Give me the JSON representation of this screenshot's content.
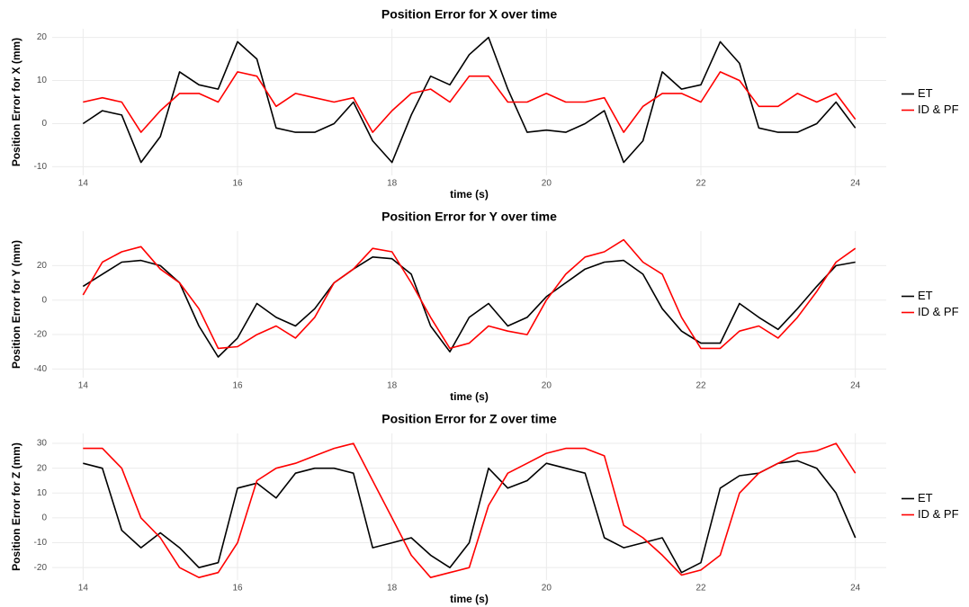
{
  "chart_data": [
    {
      "type": "line",
      "title": "Position Error for X over time",
      "xlabel": "time (s)",
      "ylabel": "Position Error for X (mm)",
      "x": [
        14,
        14.25,
        14.5,
        14.75,
        15,
        15.25,
        15.5,
        15.75,
        16,
        16.25,
        16.5,
        16.75,
        17,
        17.25,
        17.5,
        17.75,
        18,
        18.25,
        18.5,
        18.75,
        19,
        19.25,
        19.5,
        19.75,
        20,
        20.25,
        20.5,
        20.75,
        21,
        21.25,
        21.5,
        21.75,
        22,
        22.25,
        22.5,
        22.75,
        23,
        23.25,
        23.5,
        23.75,
        24
      ],
      "series": [
        {
          "name": "ET",
          "color": "#000000",
          "values": [
            0,
            3,
            2,
            -9,
            -3,
            12,
            9,
            8,
            19,
            15,
            -1,
            -2,
            -2,
            0,
            5,
            -4,
            -9,
            2,
            11,
            9,
            16,
            20,
            8,
            -2,
            -1.5,
            -2,
            0,
            3,
            -9,
            -4,
            12,
            8,
            9,
            19,
            14,
            -1,
            -2,
            -2,
            0,
            5,
            -1
          ]
        },
        {
          "name": "ID & PF",
          "color": "#ff0000",
          "values": [
            5,
            6,
            5,
            -2,
            3,
            7,
            7,
            5,
            12,
            11,
            4,
            7,
            6,
            5,
            6,
            -2,
            3,
            7,
            8,
            5,
            11,
            11,
            5,
            5,
            7,
            5,
            5,
            6,
            -2,
            4,
            7,
            7,
            5,
            12,
            10,
            4,
            4,
            7,
            5,
            7,
            1
          ]
        }
      ],
      "xlim": [
        13.6,
        24.4
      ],
      "ylim": [
        -12,
        22
      ],
      "xticks": [
        14,
        16,
        18,
        20,
        22,
        24
      ],
      "yticks": [
        -10,
        0,
        10,
        20
      ],
      "grid": true,
      "legend": "right"
    },
    {
      "type": "line",
      "title": "Position Error for Y over time",
      "xlabel": "time (s)",
      "ylabel": "Position Error for Y (mm)",
      "x": [
        14,
        14.25,
        14.5,
        14.75,
        15,
        15.25,
        15.5,
        15.75,
        16,
        16.25,
        16.5,
        16.75,
        17,
        17.25,
        17.5,
        17.75,
        18,
        18.25,
        18.5,
        18.75,
        19,
        19.25,
        19.5,
        19.75,
        20,
        20.25,
        20.5,
        20.75,
        21,
        21.25,
        21.5,
        21.75,
        22,
        22.25,
        22.5,
        22.75,
        23,
        23.25,
        23.5,
        23.75,
        24
      ],
      "series": [
        {
          "name": "ET",
          "color": "#000000",
          "values": [
            8,
            15,
            22,
            23,
            20,
            10,
            -15,
            -33,
            -22,
            -2,
            -10,
            -15,
            -5,
            10,
            18,
            25,
            24,
            15,
            -15,
            -30,
            -10,
            -2,
            -15,
            -10,
            2,
            10,
            18,
            22,
            23,
            15,
            -5,
            -18,
            -25,
            -25,
            -2,
            -10,
            -17,
            -5,
            8,
            20,
            22
          ]
        },
        {
          "name": "ID & PF",
          "color": "#ff0000",
          "values": [
            3,
            22,
            28,
            31,
            18,
            10,
            -5,
            -28,
            -27,
            -20,
            -15,
            -22,
            -10,
            10,
            18,
            30,
            28,
            10,
            -10,
            -28,
            -25,
            -15,
            -18,
            -20,
            0,
            15,
            25,
            28,
            35,
            22,
            15,
            -10,
            -28,
            -28,
            -18,
            -15,
            -22,
            -10,
            5,
            22,
            30
          ]
        }
      ],
      "xlim": [
        13.6,
        24.4
      ],
      "ylim": [
        -45,
        40
      ],
      "xticks": [
        14,
        16,
        18,
        20,
        22,
        24
      ],
      "yticks": [
        -40,
        -20,
        0,
        20
      ],
      "grid": true,
      "legend": "right"
    },
    {
      "type": "line",
      "title": "Position Error for Z over time",
      "xlabel": "time (s)",
      "ylabel": "Position Error for Z (mm)",
      "x": [
        14,
        14.25,
        14.5,
        14.75,
        15,
        15.25,
        15.5,
        15.75,
        16,
        16.25,
        16.5,
        16.75,
        17,
        17.25,
        17.5,
        17.75,
        18,
        18.25,
        18.5,
        18.75,
        19,
        19.25,
        19.5,
        19.75,
        20,
        20.25,
        20.5,
        20.75,
        21,
        21.25,
        21.5,
        21.75,
        22,
        22.25,
        22.5,
        22.75,
        23,
        23.25,
        23.5,
        23.75,
        24
      ],
      "series": [
        {
          "name": "ET",
          "color": "#000000",
          "values": [
            22,
            20,
            -5,
            -12,
            -6,
            -12,
            -20,
            -18,
            12,
            14,
            8,
            18,
            20,
            20,
            18,
            -12,
            -10,
            -8,
            -15,
            -20,
            -10,
            20,
            12,
            15,
            22,
            20,
            18,
            -8,
            -12,
            -10,
            -8,
            -22,
            -18,
            12,
            17,
            18,
            22,
            23,
            20,
            10,
            -8
          ]
        },
        {
          "name": "ID & PF",
          "color": "#ff0000",
          "values": [
            28,
            28,
            20,
            0,
            -8,
            -20,
            -24,
            -22,
            -10,
            15,
            20,
            22,
            25,
            28,
            30,
            15,
            0,
            -15,
            -24,
            -22,
            -20,
            5,
            18,
            22,
            26,
            28,
            28,
            25,
            -3,
            -8,
            -15,
            -23,
            -21,
            -15,
            10,
            18,
            22,
            26,
            27,
            30,
            18
          ]
        }
      ],
      "xlim": [
        13.6,
        24.4
      ],
      "ylim": [
        -25,
        34
      ],
      "xticks": [
        14,
        16,
        18,
        20,
        22,
        24
      ],
      "yticks": [
        -20,
        -10,
        0,
        10,
        20,
        30
      ],
      "grid": true,
      "legend": "right"
    }
  ]
}
